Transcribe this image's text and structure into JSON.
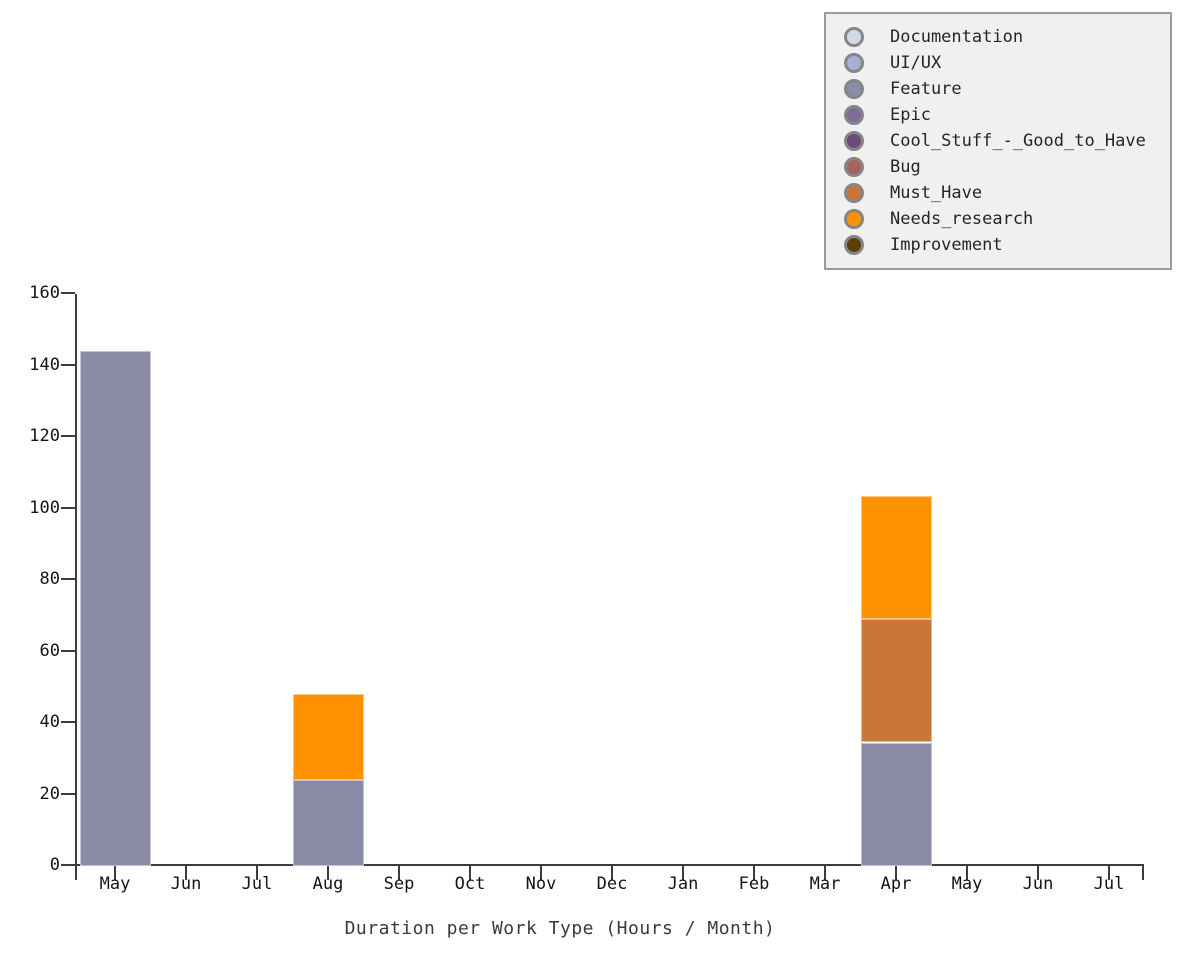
{
  "chart_data": {
    "type": "bar",
    "stacked": true,
    "title": "",
    "xlabel": "Duration per Work Type (Hours / Month)",
    "ylabel": "",
    "ylim": [
      0,
      160
    ],
    "yticks": [
      0,
      20,
      40,
      60,
      80,
      100,
      120,
      140,
      160
    ],
    "grid": false,
    "legend_position": "top-right",
    "categories": [
      "May",
      "Jun",
      "Jul",
      "Aug",
      "Sep",
      "Oct",
      "Nov",
      "Dec",
      "Jan",
      "Feb",
      "Mar",
      "Apr",
      "May",
      "Jun",
      "Jul"
    ],
    "series": [
      {
        "name": "Documentation",
        "color": "#d2dae9",
        "values": [
          0,
          0,
          0,
          0,
          0,
          0,
          0,
          0,
          0,
          0,
          0,
          0,
          0,
          0,
          0
        ]
      },
      {
        "name": "UI/UX",
        "color": "#a1b3d1",
        "values": [
          0,
          0,
          0,
          0,
          0,
          0,
          0,
          0,
          0,
          0,
          0,
          0,
          0,
          0,
          0
        ]
      },
      {
        "name": "Feature",
        "color": "#8b8aa7",
        "values": [
          144,
          0,
          0,
          24,
          0,
          0,
          0,
          0,
          0,
          0,
          0,
          34.5,
          0,
          0,
          0
        ]
      },
      {
        "name": "Epic",
        "color": "#7d6d97",
        "values": [
          0,
          0,
          0,
          0,
          0,
          0,
          0,
          0,
          0,
          0,
          0,
          0,
          0,
          0,
          0
        ]
      },
      {
        "name": "Cool_Stuff_-_Good_to_Have",
        "color": "#6f4a7c",
        "values": [
          0,
          0,
          0,
          0,
          0,
          0,
          0,
          0,
          0,
          0,
          0,
          0,
          0,
          0,
          0
        ]
      },
      {
        "name": "Bug",
        "color": "#a5635c",
        "values": [
          0,
          0,
          0,
          0,
          0,
          0,
          0,
          0,
          0,
          0,
          0,
          0,
          0,
          0,
          0
        ]
      },
      {
        "name": "Must_Have",
        "color": "#cb7539",
        "values": [
          0,
          0,
          0,
          0,
          0,
          0,
          0,
          0,
          0,
          0,
          0,
          34.5,
          0,
          0,
          0
        ]
      },
      {
        "name": "Needs_research",
        "color": "#ff9200",
        "values": [
          0,
          0,
          0,
          24,
          0,
          0,
          0,
          0,
          0,
          0,
          0,
          34.5,
          0,
          0,
          0
        ]
      },
      {
        "name": "Improvement",
        "color": "#5d3d08",
        "values": [
          0,
          0,
          0,
          0,
          0,
          0,
          0,
          0,
          0,
          0,
          0,
          0,
          0,
          0,
          0
        ]
      }
    ]
  },
  "colors": {
    "axis": "#3c3c3c",
    "text": "#141414",
    "legend_bg": "#f0f0f0",
    "legend_border": "#9c9c9c"
  }
}
